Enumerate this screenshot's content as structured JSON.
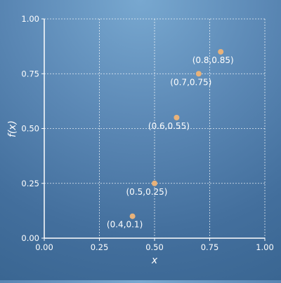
{
  "chart_data": {
    "type": "scatter",
    "title": "",
    "xlabel": "x",
    "ylabel": "f(x)",
    "xlim": [
      0,
      1
    ],
    "ylim": [
      0,
      1
    ],
    "grid": true,
    "x_ticks": [
      0,
      0.25,
      0.5,
      0.75,
      1.0
    ],
    "y_ticks": [
      0,
      0.25,
      0.5,
      0.75,
      1.0
    ],
    "x_tick_labels": [
      "0.00",
      "0.25",
      "0.50",
      "0.75",
      "1.00"
    ],
    "y_tick_labels": [
      "0.00",
      "0.25",
      "0.50",
      "0.75",
      "1.00"
    ],
    "series": [
      {
        "points": [
          {
            "x": 0.4,
            "y": 0.1,
            "label": "(0.4,0.1)"
          },
          {
            "x": 0.5,
            "y": 0.25,
            "label": "(0.5,0.25)"
          },
          {
            "x": 0.6,
            "y": 0.55,
            "label": "(0.6,0.55)"
          },
          {
            "x": 0.7,
            "y": 0.75,
            "label": "(0.7,0.75)"
          },
          {
            "x": 0.8,
            "y": 0.85,
            "label": "(0.8,0.85)"
          }
        ]
      }
    ],
    "colors": {
      "point": "#e8b27a",
      "axis": "#ffffff",
      "grid": "#ffffff"
    }
  }
}
